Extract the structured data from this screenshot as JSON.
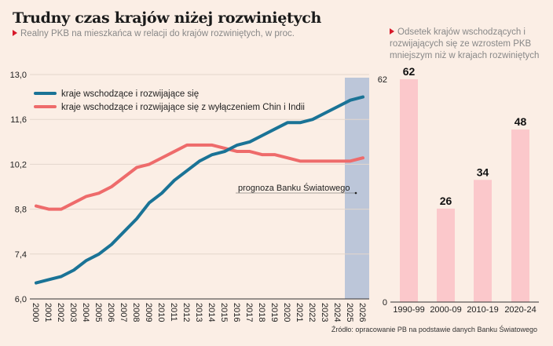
{
  "title": "Trudny czas krajów niżej rozwiniętych",
  "subtitle": "Realny PKB na mieszkańca w relacji do krajów rozwiniętych, w proc.",
  "source": "Źródło: opracowanie PB na podstawie danych Banku Światowego",
  "colors": {
    "background": "#fbeee5",
    "teal": "#1a7396",
    "red": "#ee6b6b",
    "forecast_band": "#bcc6d9",
    "bar": "#fbc8cb",
    "accent": "#d7192a"
  },
  "chart_data": [
    {
      "type": "line",
      "title": "Realny PKB na mieszkańca w relacji do krajów rozwiniętych, w proc.",
      "xlabel": "",
      "ylabel": "",
      "x": [
        2000,
        2001,
        2002,
        2003,
        2004,
        2005,
        2006,
        2007,
        2008,
        2009,
        2010,
        2011,
        2012,
        2013,
        2014,
        2015,
        2016,
        2017,
        2018,
        2019,
        2020,
        2021,
        2022,
        2023,
        2024,
        2025,
        2026
      ],
      "x_tick_labels": [
        "2000",
        "2001",
        "2002",
        "2003",
        "2004",
        "2005",
        "2006",
        "2007",
        "2008",
        "2009",
        "2010",
        "2011",
        "2012",
        "2013",
        "2014",
        "2015",
        "2016",
        "2017",
        "2018",
        "2019",
        "2020",
        "2021",
        "2022",
        "2023",
        "2024",
        "2025",
        "2026"
      ],
      "y_ticks": [
        6.0,
        7.4,
        8.8,
        10.2,
        11.6,
        13.0
      ],
      "y_tick_labels": [
        "6,0",
        "7,4",
        "8,8",
        "10,2",
        "11,6",
        "13,0"
      ],
      "ylim": [
        6.0,
        13.0
      ],
      "grid": true,
      "legend_position": "top-left",
      "series": [
        {
          "name": "kraje wschodzące i rozwijające się",
          "color_key": "teal",
          "values": [
            6.5,
            6.6,
            6.7,
            6.9,
            7.2,
            7.4,
            7.7,
            8.1,
            8.5,
            9.0,
            9.3,
            9.7,
            10.0,
            10.3,
            10.5,
            10.6,
            10.8,
            10.9,
            11.1,
            11.3,
            11.5,
            11.5,
            11.6,
            11.8,
            12.0,
            12.2,
            12.3
          ]
        },
        {
          "name": "kraje wschodzące i rozwijające się z wyłączeniem Chin i Indii",
          "color_key": "red",
          "values": [
            8.9,
            8.8,
            8.8,
            9.0,
            9.2,
            9.3,
            9.5,
            9.8,
            10.1,
            10.2,
            10.4,
            10.6,
            10.8,
            10.8,
            10.8,
            10.7,
            10.6,
            10.6,
            10.5,
            10.5,
            10.4,
            10.3,
            10.3,
            10.3,
            10.3,
            10.3,
            10.4
          ]
        }
      ],
      "forecast_range": [
        2025,
        2026
      ],
      "annotation": "prognoza Banku Światowego"
    },
    {
      "type": "bar",
      "title": "Odsetek krajów wschodzących i rozwijających się ze wzrostem PKB mniejszym niż w krajach rozwiniętych",
      "categories": [
        "1990-99",
        "2000-09",
        "2010-19",
        "2020-24"
      ],
      "values": [
        62,
        26,
        34,
        48
      ],
      "y_ticks": [
        0,
        62
      ],
      "y_tick_labels": [
        "0",
        "62"
      ],
      "ylim": [
        0,
        62
      ],
      "xlabel": "",
      "ylabel": ""
    }
  ]
}
